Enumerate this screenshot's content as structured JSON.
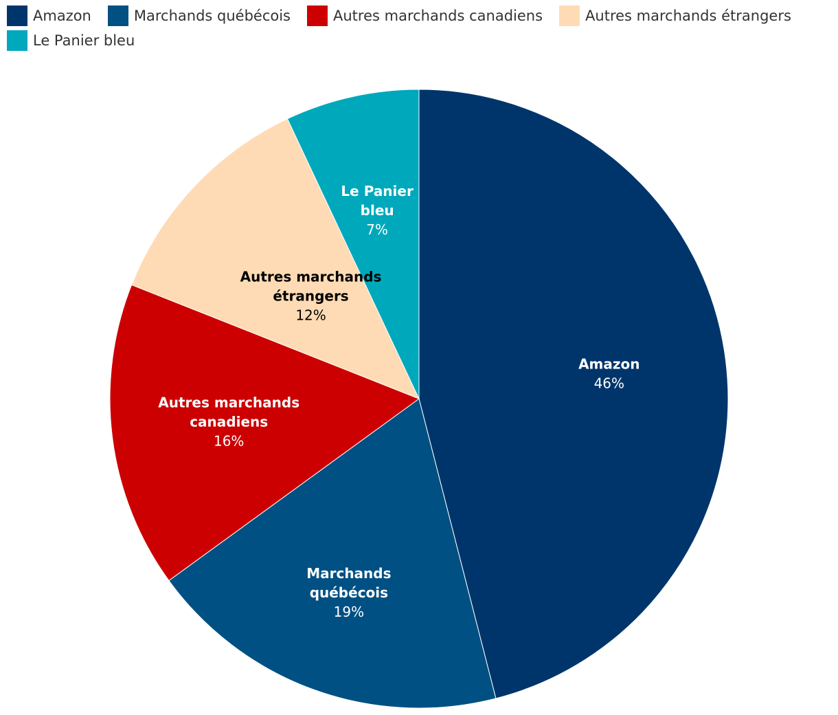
{
  "chart_data": {
    "type": "pie",
    "title": "",
    "legend_position": "top-left",
    "slices": [
      {
        "label": "Amazon",
        "label_lines": [
          "Amazon"
        ],
        "value": 46,
        "value_label": "46%",
        "color": "#00356b",
        "label_color": "#ffffff"
      },
      {
        "label": "Marchands québécois",
        "label_lines": [
          "Marchands",
          "québécois"
        ],
        "value": 19,
        "value_label": "19%",
        "color": "#005083",
        "label_color": "#ffffff"
      },
      {
        "label": "Autres marchands canadiens",
        "label_lines": [
          "Autres marchands",
          "canadiens"
        ],
        "value": 16,
        "value_label": "16%",
        "color": "#cc0000",
        "label_color": "#ffffff"
      },
      {
        "label": "Autres marchands étrangers",
        "label_lines": [
          "Autres marchands",
          "étrangers"
        ],
        "value": 12,
        "value_label": "12%",
        "color": "#ffdbb5",
        "label_color": "#000000"
      },
      {
        "label": "Le Panier bleu",
        "label_lines": [
          "Le Panier",
          "bleu"
        ],
        "value": 7,
        "value_label": "7%",
        "color": "#00a8bc",
        "label_color": "#ffffff"
      }
    ]
  }
}
